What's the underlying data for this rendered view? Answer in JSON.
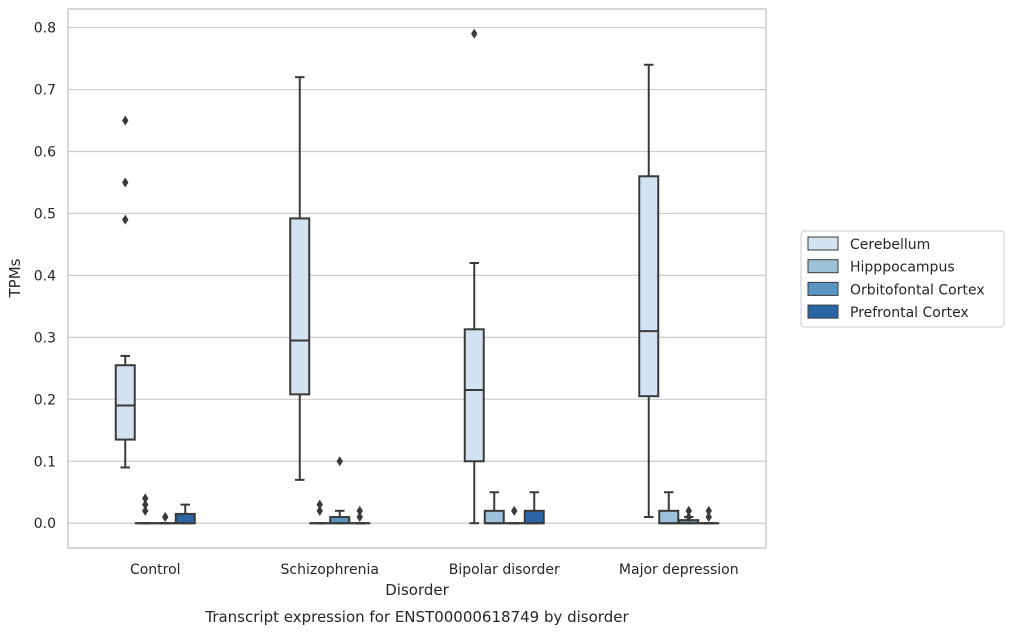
{
  "chart_data": {
    "type": "boxplot",
    "title": "Transcript expression for ENST00000618749 by disorder",
    "xlabel": "Disorder",
    "ylabel": "TPMs",
    "ylim": [
      -0.04,
      0.83
    ],
    "yticks": [
      "0.0",
      "0.1",
      "0.2",
      "0.3",
      "0.4",
      "0.5",
      "0.6",
      "0.7",
      "0.8"
    ],
    "ytick_values": [
      0.0,
      0.1,
      0.2,
      0.3,
      0.4,
      0.5,
      0.6,
      0.7,
      0.8
    ],
    "grid": true,
    "legend_position": "right",
    "categories": [
      "Control",
      "Schizophrenia",
      "Bipolar disorder",
      "Major depression"
    ],
    "series": [
      {
        "name": "Cerebellum",
        "color": "#d3e2f0",
        "boxes": [
          {
            "whislo": 0.09,
            "q1": 0.135,
            "med": 0.19,
            "q3": 0.255,
            "whishi": 0.27,
            "fliers": [
              0.49,
              0.55,
              0.65
            ]
          },
          {
            "whislo": 0.07,
            "q1": 0.208,
            "med": 0.295,
            "q3": 0.492,
            "whishi": 0.72,
            "fliers": []
          },
          {
            "whislo": 0.0,
            "q1": 0.1,
            "med": 0.215,
            "q3": 0.313,
            "whishi": 0.42,
            "fliers": [
              0.79
            ]
          },
          {
            "whislo": 0.01,
            "q1": 0.205,
            "med": 0.31,
            "q3": 0.56,
            "whishi": 0.74,
            "fliers": []
          }
        ]
      },
      {
        "name": "Hipppocampus",
        "color": "#9cc1db",
        "boxes": [
          {
            "whislo": 0.0,
            "q1": 0.0,
            "med": 0.0,
            "q3": 0.0,
            "whishi": 0.0,
            "fliers": [
              0.02,
              0.03,
              0.04
            ]
          },
          {
            "whislo": 0.0,
            "q1": 0.0,
            "med": 0.0,
            "q3": 0.0,
            "whishi": 0.0,
            "fliers": [
              0.02,
              0.03
            ]
          },
          {
            "whislo": 0.0,
            "q1": 0.0,
            "med": 0.0,
            "q3": 0.02,
            "whishi": 0.05,
            "fliers": []
          },
          {
            "whislo": 0.0,
            "q1": 0.0,
            "med": 0.0,
            "q3": 0.02,
            "whishi": 0.05,
            "fliers": []
          }
        ]
      },
      {
        "name": "Orbitofontal Cortex",
        "color": "#5a96c3",
        "boxes": [
          {
            "whislo": 0.0,
            "q1": 0.0,
            "med": 0.0,
            "q3": 0.0,
            "whishi": 0.0,
            "fliers": [
              0.01
            ]
          },
          {
            "whislo": 0.0,
            "q1": 0.0,
            "med": 0.0,
            "q3": 0.01,
            "whishi": 0.02,
            "fliers": [
              0.1
            ]
          },
          {
            "whislo": 0.0,
            "q1": 0.0,
            "med": 0.0,
            "q3": 0.0,
            "whishi": 0.0,
            "fliers": [
              0.02
            ]
          },
          {
            "whislo": 0.0,
            "q1": 0.0,
            "med": 0.0,
            "q3": 0.005,
            "whishi": 0.01,
            "fliers": [
              0.01,
              0.02
            ]
          }
        ]
      },
      {
        "name": "Prefrontal Cortex",
        "color": "#2a66a5",
        "boxes": [
          {
            "whislo": 0.0,
            "q1": 0.0,
            "med": 0.0,
            "q3": 0.015,
            "whishi": 0.03,
            "fliers": []
          },
          {
            "whislo": 0.0,
            "q1": 0.0,
            "med": 0.0,
            "q3": 0.0,
            "whishi": 0.0,
            "fliers": [
              0.01,
              0.02
            ]
          },
          {
            "whislo": 0.0,
            "q1": 0.0,
            "med": 0.0,
            "q3": 0.02,
            "whishi": 0.05,
            "fliers": []
          },
          {
            "whislo": 0.0,
            "q1": 0.0,
            "med": 0.0,
            "q3": 0.0,
            "whishi": 0.0,
            "fliers": [
              0.01,
              0.02
            ]
          }
        ]
      }
    ]
  }
}
